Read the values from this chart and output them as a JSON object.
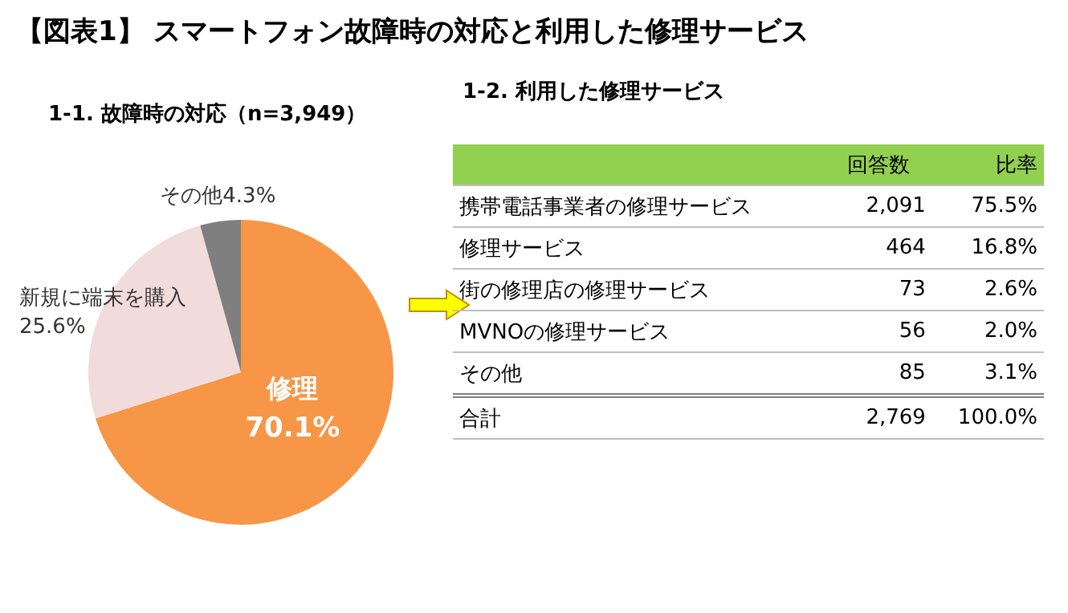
{
  "chart_data": [
    {
      "type": "pie",
      "title": "【図表1】 スマートフォン故障時の対応と利用した修理サービス",
      "subtitle": "1-1. 故障時の対応（n=3,949）",
      "categories": [
        "修理",
        "新規に端末を購入",
        "その他"
      ],
      "values": [
        70.1,
        25.6,
        4.3
      ],
      "value_labels": [
        "70.1%",
        "25.6%",
        "4.3%"
      ],
      "colors": [
        "#f79646",
        "#f2dcdb",
        "#7f7f7f"
      ],
      "legend": false
    },
    {
      "type": "other",
      "title": "1-2. 利用した修理サービス",
      "categories": [
        "携帯電話事業者の修理サービス",
        "修理サービス",
        "街の修理店の修理サービス",
        "MVNOの修理サービス",
        "その他",
        "合計"
      ],
      "series": [
        {
          "name": "回答数",
          "values": [
            2091,
            464,
            73,
            56,
            85,
            2769
          ],
          "value_labels": [
            "2,091",
            "464",
            "73",
            "56",
            "85",
            "2,769"
          ]
        },
        {
          "name": "比率",
          "values": [
            75.5,
            16.8,
            2.6,
            2.0,
            3.1,
            100.0
          ],
          "value_labels": [
            "75.5%",
            "16.8%",
            "2.6%",
            "2.0%",
            "3.1%",
            "100.0%"
          ]
        }
      ]
    }
  ]
}
